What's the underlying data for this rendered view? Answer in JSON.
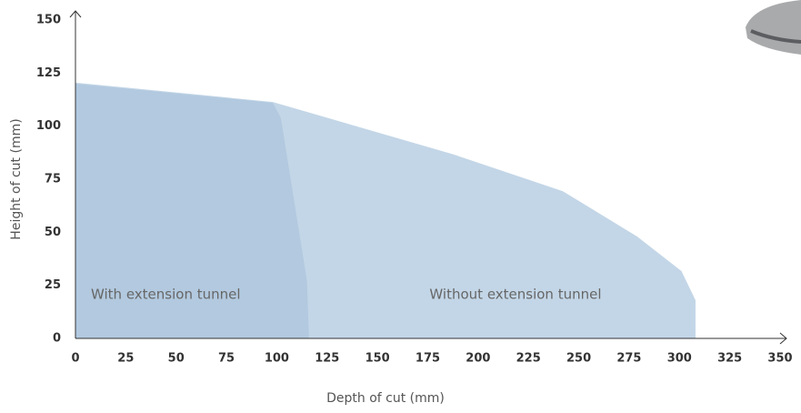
{
  "chart_data": {
    "type": "area",
    "x_label": "Depth of cut (mm)",
    "y_label": "Height of cut (mm)",
    "xlim": [
      0,
      350
    ],
    "ylim": [
      0,
      150
    ],
    "xticks": [
      0,
      25,
      50,
      75,
      100,
      125,
      150,
      175,
      200,
      225,
      250,
      275,
      300,
      325,
      350
    ],
    "yticks": [
      0,
      25,
      50,
      75,
      100,
      125,
      150
    ],
    "series": [
      {
        "name": "Without extension tunnel",
        "color": "#c3d6e7",
        "x": [
          0,
          98,
          188,
          242,
          279,
          301,
          308,
          308
        ],
        "values": [
          120.5,
          111.4,
          86.6,
          69.4,
          48,
          31.7,
          18,
          0
        ]
      },
      {
        "name": "With extension tunnel",
        "color": "#b2c9df",
        "x": [
          0,
          98,
          102,
          115,
          116
        ],
        "values": [
          120,
          111,
          104,
          27,
          0
        ]
      }
    ]
  }
}
